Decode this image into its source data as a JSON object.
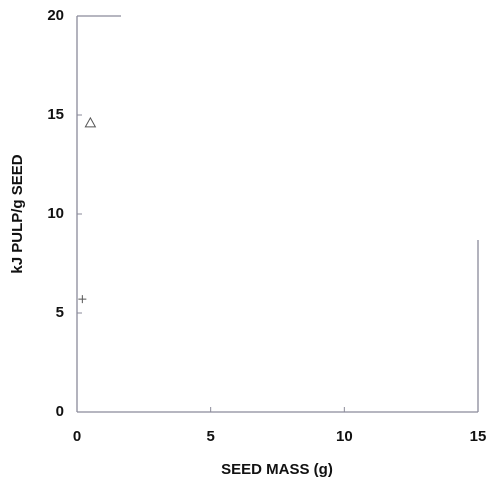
{
  "chart_data": {
    "type": "scatter",
    "xlabel": "SEED MASS (g)",
    "ylabel": "kJ PULP/g SEED",
    "xlim": [
      0,
      15
    ],
    "ylim": [
      0,
      20
    ],
    "xticks": [
      0,
      5,
      10,
      15
    ],
    "yticks": [
      0,
      5,
      10,
      15,
      20
    ],
    "series": [
      {
        "marker": "triangle",
        "color": "#555555",
        "x": [
          0.5
        ],
        "y": [
          14.6
        ]
      },
      {
        "marker": "plus",
        "color": "#555555",
        "x": [
          0.2
        ],
        "y": [
          5.7
        ]
      }
    ]
  }
}
